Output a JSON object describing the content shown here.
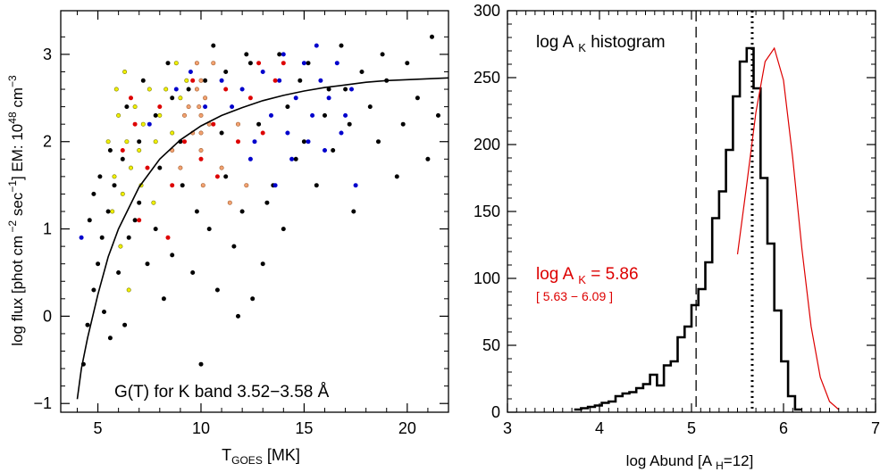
{
  "chart_data": [
    {
      "type": "scatter",
      "xlabel_main": "T",
      "xlabel_sub": "GOES",
      "xlabel_tail": " [MK]",
      "ylabel": "log flux  [phot cm",
      "ylabel_sup1": " −2",
      "ylabel_mid1": " sec",
      "ylabel_sup2": "−1",
      "ylabel_mid2": "] EM: 10",
      "ylabel_sup3": "48",
      "ylabel_mid3": " cm",
      "ylabel_sup4": "−3",
      "annotation": "G(T) for K band 3.52−3.58 Å",
      "xlim": [
        3.2,
        22
      ],
      "ylim": [
        -1.1,
        3.5
      ],
      "xticks": [
        5,
        10,
        15,
        20
      ],
      "yticks": [
        -1,
        0,
        1,
        2,
        3
      ],
      "xtick_labels": [
        "5",
        "10",
        "15",
        "20"
      ],
      "ytick_labels": [
        "−1",
        "0",
        "1",
        "2",
        "3"
      ],
      "fit_curve": [
        [
          4.0,
          -0.95
        ],
        [
          4.2,
          -0.6
        ],
        [
          4.5,
          -0.25
        ],
        [
          5.0,
          0.25
        ],
        [
          5.5,
          0.68
        ],
        [
          6.0,
          1.0
        ],
        [
          7.0,
          1.48
        ],
        [
          8.0,
          1.8
        ],
        [
          9.0,
          2.02
        ],
        [
          10.0,
          2.18
        ],
        [
          11.0,
          2.3
        ],
        [
          12.0,
          2.39
        ],
        [
          13.0,
          2.47
        ],
        [
          14.0,
          2.53
        ],
        [
          15.0,
          2.58
        ],
        [
          16.0,
          2.62
        ],
        [
          17.0,
          2.65
        ],
        [
          18.0,
          2.68
        ],
        [
          19.0,
          2.7
        ],
        [
          20.0,
          2.71
        ],
        [
          21.0,
          2.72
        ],
        [
          22.0,
          2.73
        ]
      ],
      "series": [
        {
          "color": "#000000",
          "points": [
            [
              4.3,
              -0.55
            ],
            [
              4.5,
              -0.1
            ],
            [
              4.8,
              0.3
            ],
            [
              5.0,
              0.6
            ],
            [
              5.2,
              0.9
            ],
            [
              5.5,
              1.2
            ],
            [
              5.8,
              1.5
            ],
            [
              4.6,
              1.1
            ],
            [
              5.3,
              0.05
            ],
            [
              5.6,
              -0.25
            ],
            [
              6.0,
              0.5
            ],
            [
              6.3,
              -0.1
            ],
            [
              6.5,
              0.9
            ],
            [
              7.0,
              1.3
            ],
            [
              7.4,
              0.6
            ],
            [
              7.8,
              1.0
            ],
            [
              8.2,
              0.2
            ],
            [
              8.6,
              0.7
            ],
            [
              9.1,
              1.5
            ],
            [
              9.6,
              0.5
            ],
            [
              10.0,
              -0.55
            ],
            [
              10.4,
              1.0
            ],
            [
              10.8,
              0.3
            ],
            [
              11.2,
              1.6
            ],
            [
              11.6,
              0.8
            ],
            [
              12.0,
              1.2
            ],
            [
              12.5,
              0.2
            ],
            [
              13.0,
              0.6
            ],
            [
              13.5,
              1.5
            ],
            [
              14.0,
              1.0
            ],
            [
              14.6,
              1.8
            ],
            [
              15.0,
              2.0
            ],
            [
              15.6,
              1.5
            ],
            [
              16.0,
              2.3
            ],
            [
              16.4,
              1.9
            ],
            [
              17.0,
              2.6
            ],
            [
              17.4,
              1.2
            ],
            [
              17.8,
              2.8
            ],
            [
              18.2,
              2.4
            ],
            [
              18.6,
              2.0
            ],
            [
              19.0,
              2.7
            ],
            [
              19.5,
              1.6
            ],
            [
              20.0,
              2.9
            ],
            [
              20.5,
              2.5
            ],
            [
              21.0,
              1.8
            ],
            [
              21.2,
              3.2
            ],
            [
              18.8,
              3.0
            ],
            [
              16.8,
              3.1
            ],
            [
              15.2,
              2.9
            ],
            [
              13.8,
              3.0
            ],
            [
              12.4,
              2.9
            ],
            [
              11.2,
              2.8
            ],
            [
              10.2,
              2.7
            ],
            [
              9.4,
              2.6
            ],
            [
              8.6,
              2.5
            ],
            [
              7.8,
              2.3
            ],
            [
              7.0,
              2.0
            ],
            [
              6.2,
              1.8
            ],
            [
              5.6,
              1.9
            ],
            [
              5.1,
              1.6
            ],
            [
              4.8,
              1.4
            ],
            [
              6.8,
              1.1
            ],
            [
              8.0,
              1.7
            ],
            [
              9.0,
              2.0
            ],
            [
              11.0,
              2.1
            ],
            [
              12.8,
              2.2
            ],
            [
              14.2,
              2.4
            ],
            [
              16.2,
              2.6
            ],
            [
              19.8,
              2.2
            ],
            [
              21.5,
              2.3
            ],
            [
              6.4,
              2.4
            ],
            [
              7.2,
              2.7
            ],
            [
              8.4,
              2.9
            ],
            [
              10.6,
              3.1
            ],
            [
              12.2,
              3.0
            ],
            [
              14.8,
              2.7
            ],
            [
              17.2,
              2.2
            ],
            [
              9.8,
              1.2
            ],
            [
              11.8,
              0.0
            ],
            [
              13.2,
              1.3
            ]
          ]
        },
        {
          "color": "#0000cc",
          "points": [
            [
              11.5,
              2.4
            ],
            [
              12.0,
              2.6
            ],
            [
              12.6,
              2.0
            ],
            [
              13.0,
              2.8
            ],
            [
              13.4,
              2.3
            ],
            [
              13.8,
              2.7
            ],
            [
              14.2,
              2.1
            ],
            [
              14.6,
              2.5
            ],
            [
              15.0,
              2.9
            ],
            [
              15.4,
              2.3
            ],
            [
              15.8,
              2.7
            ],
            [
              16.2,
              2.5
            ],
            [
              16.6,
              2.9
            ],
            [
              17.0,
              2.3
            ],
            [
              17.3,
              2.6
            ],
            [
              17.5,
              1.5
            ],
            [
              16.0,
              1.9
            ],
            [
              15.2,
              2.0
            ],
            [
              9.5,
              2.8
            ],
            [
              10.2,
              2.4
            ],
            [
              8.8,
              2.6
            ],
            [
              7.5,
              2.2
            ],
            [
              14.0,
              3.0
            ],
            [
              16.8,
              2.1
            ],
            [
              12.4,
              1.8
            ],
            [
              13.6,
              1.5
            ],
            [
              11.0,
              2.7
            ],
            [
              4.2,
              0.9
            ],
            [
              15.6,
              3.1
            ],
            [
              14.4,
              1.8
            ]
          ]
        },
        {
          "color": "#dd0000",
          "points": [
            [
              6.2,
              1.9
            ],
            [
              6.8,
              2.2
            ],
            [
              7.4,
              1.7
            ],
            [
              8.0,
              2.4
            ],
            [
              8.6,
              1.5
            ],
            [
              9.2,
              2.0
            ],
            [
              10.0,
              1.8
            ],
            [
              10.6,
              2.2
            ],
            [
              11.2,
              2.6
            ],
            [
              11.8,
              2.0
            ],
            [
              12.4,
              2.5
            ],
            [
              13.0,
              2.1
            ],
            [
              13.6,
              2.7
            ],
            [
              14.0,
              2.9
            ],
            [
              7.0,
              1.1
            ],
            [
              8.4,
              0.9
            ],
            [
              9.6,
              2.7
            ],
            [
              12.8,
              2.9
            ],
            [
              6.6,
              2.5
            ],
            [
              10.8,
              1.6
            ]
          ]
        },
        {
          "color": "#f0f000",
          "stroke": "#7a7a00",
          "points": [
            [
              5.5,
              2.0
            ],
            [
              5.8,
              1.6
            ],
            [
              6.0,
              2.3
            ],
            [
              6.2,
              1.4
            ],
            [
              6.4,
              2.0
            ],
            [
              6.6,
              1.7
            ],
            [
              6.8,
              2.4
            ],
            [
              7.0,
              1.9
            ],
            [
              7.2,
              2.2
            ],
            [
              7.5,
              2.6
            ],
            [
              7.8,
              2.0
            ],
            [
              8.0,
              2.3
            ],
            [
              8.3,
              2.6
            ],
            [
              8.6,
              2.1
            ],
            [
              9.0,
              2.5
            ],
            [
              9.3,
              2.7
            ],
            [
              5.7,
              1.2
            ],
            [
              6.1,
              0.8
            ],
            [
              6.5,
              0.3
            ],
            [
              7.1,
              1.5
            ],
            [
              5.9,
              2.6
            ],
            [
              8.8,
              2.9
            ],
            [
              6.3,
              2.8
            ],
            [
              7.7,
              1.3
            ]
          ]
        },
        {
          "color": "#f2a170",
          "stroke": "#a05a2a",
          "points": [
            [
              9.4,
              2.4
            ],
            [
              9.6,
              2.1
            ],
            [
              9.8,
              2.6
            ],
            [
              10.0,
              2.3
            ],
            [
              10.0,
              1.9
            ],
            [
              10.0,
              2.7
            ],
            [
              10.2,
              2.5
            ],
            [
              10.0,
              2.1
            ],
            [
              9.8,
              2.9
            ],
            [
              10.4,
              2.2
            ],
            [
              9.0,
              1.7
            ],
            [
              11.0,
              1.7
            ],
            [
              11.8,
              2.2
            ],
            [
              12.2,
              1.5
            ],
            [
              8.6,
              1.9
            ],
            [
              10.6,
              2.9
            ],
            [
              9.2,
              2.3
            ],
            [
              10.1,
              1.5
            ],
            [
              9.9,
              2.4
            ],
            [
              11.4,
              1.3
            ]
          ]
        }
      ]
    },
    {
      "type": "histogram",
      "xlabel": "log Abund [A",
      "xlabel_sub": "H",
      "xlabel_tail": "=12]",
      "title_main": "log A",
      "title_sub": "K",
      "title_tail": " histogram",
      "result_main": "log A",
      "result_sub": "K",
      "result_tail": " =  5.86",
      "range_label": "[ 5.63 −  6.09 ]",
      "xlim": [
        3,
        7
      ],
      "ylim": [
        0,
        300
      ],
      "xticks": [
        3,
        4,
        5,
        6,
        7
      ],
      "yticks": [
        0,
        50,
        100,
        150,
        200,
        250,
        300
      ],
      "xtick_labels": [
        "3",
        "4",
        "5",
        "6",
        "7"
      ],
      "ytick_labels": [
        "0",
        "50",
        "100",
        "150",
        "200",
        "250",
        "300"
      ],
      "bin_width": 0.075,
      "bin_start": 3.725,
      "values": [
        2,
        3,
        4,
        5,
        7,
        8,
        12,
        14,
        15,
        18,
        21,
        28,
        20,
        35,
        38,
        56,
        64,
        80,
        92,
        112,
        145,
        165,
        196,
        236,
        262,
        272,
        242,
        175,
        126,
        76,
        38,
        12,
        2
      ],
      "dashed_line_x": 5.05,
      "dotted_line_x": 5.66,
      "fit_x": [
        5.5,
        5.6,
        5.7,
        5.8,
        5.9,
        6.0,
        6.1,
        6.2,
        6.3,
        6.4,
        6.5,
        6.6
      ],
      "fit_y": [
        118,
        170,
        224,
        262,
        272,
        248,
        190,
        122,
        64,
        26,
        8,
        2
      ],
      "colors": {
        "fit": "#dd0000",
        "result_text": "#dd0000"
      }
    }
  ]
}
